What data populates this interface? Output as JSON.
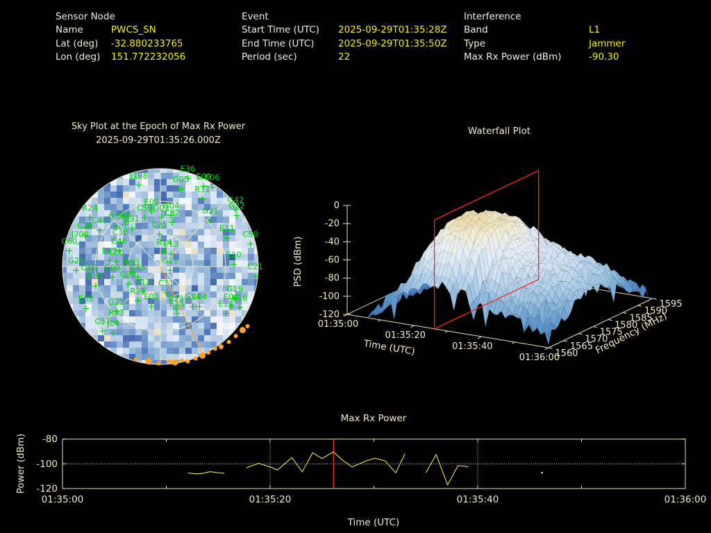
{
  "header": {
    "sensor": {
      "title": "Sensor Node",
      "rows": [
        {
          "label": "Name",
          "value": "PWCS_SN"
        },
        {
          "label": "Lat (deg)",
          "value": "-32.880233765"
        },
        {
          "label": "Lon (deg)",
          "value": "151.772232056"
        }
      ]
    },
    "event": {
      "title": "Event",
      "rows": [
        {
          "label": "Start Time (UTC)",
          "value": "2025-09-29T01:35:28Z"
        },
        {
          "label": "End Time (UTC)",
          "value": "2025-09-29T01:35:50Z"
        },
        {
          "label": "Period (sec)",
          "value": "22"
        }
      ]
    },
    "interference": {
      "title": "Interference",
      "rows": [
        {
          "label": "Band",
          "value": "L1"
        },
        {
          "label": "Type",
          "value": "Jammer"
        },
        {
          "label": "Max Rx Power (dBm)",
          "value": "-90.30"
        }
      ]
    }
  },
  "colors": {
    "background": "#000000",
    "label_white": "#f0efe2",
    "value_yellow": "#f2f216",
    "axis_cream": "#f2eecb",
    "grid_cream": "#e9e5c2",
    "sat_green": "#00d400",
    "track_orange": "#ffa226",
    "marker_red": "#ff2222",
    "series_yellow": "#efe352"
  },
  "chart_data": [
    {
      "type": "polar-heatmap",
      "title": "Sky Plot at the Epoch of Max Rx Power",
      "subtitle": "2025-09-29T01:35:26.000Z",
      "elevation_rings_deg": [
        0,
        30,
        60
      ],
      "spokes_deg_step": 45,
      "label_color": "#00d400",
      "track_color": "#ffa226",
      "palette": [
        "#24427f",
        "#3a5da6",
        "#5b82c0",
        "#86aad2",
        "#aec8e2",
        "#d3e1ef",
        "#eaf0f8",
        "#ffffff"
      ],
      "accent_cream": "#e9e2c6",
      "satellites": [
        {
          "id": "E36",
          "x": 0.28,
          "y": -1.0
        },
        {
          "id": "J198",
          "x": -0.22,
          "y": -0.93
        },
        {
          "id": "G05",
          "x": 0.21,
          "y": -0.89
        },
        {
          "id": "E09",
          "x": 0.44,
          "y": -0.92
        },
        {
          "id": "E06",
          "x": 0.53,
          "y": -0.91
        },
        {
          "id": "R11",
          "x": 0.43,
          "y": -0.79
        },
        {
          "id": "G42",
          "x": 0.77,
          "y": -0.68
        },
        {
          "id": "G22",
          "x": 0.78,
          "y": -0.62
        },
        {
          "id": "G21",
          "x": 0.51,
          "y": -0.57
        },
        {
          "id": "E11",
          "x": 0.68,
          "y": -0.39
        },
        {
          "id": "C50",
          "x": 0.92,
          "y": -0.33
        },
        {
          "id": "E10",
          "x": 0.75,
          "y": -0.12
        },
        {
          "id": "C21",
          "x": 0.97,
          "y": 0.0
        },
        {
          "id": "G19",
          "x": 0.76,
          "y": 0.23
        },
        {
          "id": "E04",
          "x": 0.72,
          "y": 0.31
        },
        {
          "id": "E16",
          "x": 0.81,
          "y": 0.32
        },
        {
          "id": "E14",
          "x": 0.67,
          "y": 0.38
        },
        {
          "id": "G34",
          "x": 0.33,
          "y": 0.31
        },
        {
          "id": "C04",
          "x": 0.4,
          "y": 0.31
        },
        {
          "id": "R23",
          "x": 0.16,
          "y": 0.33
        },
        {
          "id": "E15",
          "x": 0.17,
          "y": 0.38
        },
        {
          "id": "C11",
          "x": 0.06,
          "y": 0.17
        },
        {
          "id": "G12",
          "x": -0.18,
          "y": 0.16
        },
        {
          "id": "R13",
          "x": -0.23,
          "y": 0.25
        },
        {
          "id": "E02",
          "x": -0.09,
          "y": 0.31
        },
        {
          "id": "G25",
          "x": -0.45,
          "y": 0.36
        },
        {
          "id": "R03",
          "x": -0.45,
          "y": 0.47
        },
        {
          "id": "C57",
          "x": -0.59,
          "y": 0.56
        },
        {
          "id": "J04",
          "x": -0.48,
          "y": 0.58
        },
        {
          "id": "E08",
          "x": -0.76,
          "y": 0.33
        },
        {
          "id": "E30",
          "x": -0.66,
          "y": 0.1
        },
        {
          "id": "C10",
          "x": -0.73,
          "y": 0.01
        },
        {
          "id": "G29",
          "x": -0.86,
          "y": -0.06
        },
        {
          "id": "C60",
          "x": -0.93,
          "y": -0.26
        },
        {
          "id": "J200",
          "x": -0.82,
          "y": -0.33
        },
        {
          "id": "C26",
          "x": -0.77,
          "y": -0.42
        },
        {
          "id": "R24",
          "x": -0.72,
          "y": -0.6
        },
        {
          "id": "C40",
          "x": -0.62,
          "y": -0.47
        },
        {
          "id": "G37",
          "x": -0.45,
          "y": -0.51
        },
        {
          "id": "J13",
          "x": -0.36,
          "y": -0.53
        },
        {
          "id": "E31",
          "x": -0.29,
          "y": -0.49
        },
        {
          "id": "E05",
          "x": -0.09,
          "y": -0.66
        },
        {
          "id": "C59",
          "x": -0.16,
          "y": -0.6
        },
        {
          "id": "G01",
          "x": 0.01,
          "y": -0.6
        },
        {
          "id": "G04",
          "x": 0.11,
          "y": -0.62
        },
        {
          "id": "C82",
          "x": 0.12,
          "y": -0.55
        },
        {
          "id": "C25",
          "x": -0.01,
          "y": -0.43
        },
        {
          "id": "C35",
          "x": -0.41,
          "y": -0.35
        },
        {
          "id": "C46",
          "x": -0.42,
          "y": -0.26
        },
        {
          "id": "E03",
          "x": -0.52,
          "y": -0.16
        },
        {
          "id": "C06",
          "x": -0.45,
          "y": -0.15
        },
        {
          "id": "C09",
          "x": -0.49,
          "y": 0.01
        },
        {
          "id": "R33",
          "x": -0.29,
          "y": -0.04
        },
        {
          "id": "E45",
          "x": -0.23,
          "y": 0.01
        },
        {
          "id": "C23",
          "x": -0.33,
          "y": 0.08
        },
        {
          "id": "R14",
          "x": 0.04,
          "y": -0.25
        },
        {
          "id": "E13",
          "x": 0.11,
          "y": -0.23
        },
        {
          "id": "G11",
          "x": 0.1,
          "y": -0.06
        }
      ],
      "horizon_track_dots": [
        [
          -0.25,
          0.95,
          3
        ],
        [
          -0.12,
          0.97,
          4.5
        ],
        [
          -0.02,
          0.99,
          3
        ],
        [
          0.09,
          0.97,
          3
        ],
        [
          0.15,
          0.98,
          4.5
        ],
        [
          0.22,
          0.96,
          3
        ],
        [
          0.28,
          0.97,
          3
        ],
        [
          0.36,
          0.94,
          3
        ],
        [
          0.43,
          0.91,
          4.5
        ],
        [
          0.49,
          0.88,
          3
        ],
        [
          0.56,
          0.84,
          3
        ],
        [
          0.62,
          0.82,
          3.5
        ],
        [
          0.7,
          0.77,
          3
        ],
        [
          0.77,
          0.71,
          3
        ],
        [
          0.84,
          0.65,
          4.5
        ],
        [
          0.89,
          0.61,
          3
        ]
      ],
      "bearing_line_end": [
        0.44,
        0.915
      ]
    },
    {
      "type": "surface",
      "title": "Waterfall Plot",
      "xlabel": "Time (UTC)",
      "ylabel": "Frequency (MHz)",
      "zlabel": "PSD (dBm)",
      "time_ticks": [
        {
          "sec": 0,
          "label": "01:35:00"
        },
        {
          "sec": 20,
          "label": "01:35:20"
        },
        {
          "sec": 40,
          "label": "01:35:40"
        },
        {
          "sec": 60,
          "label": "01:36:00"
        }
      ],
      "time_minor_ticks_sec": [
        10,
        30,
        50
      ],
      "freq_ticks": [
        1560,
        1565,
        1570,
        1575,
        1580,
        1585,
        1590,
        1595
      ],
      "psd_ticks": [
        0,
        -20,
        -40,
        -60,
        -80,
        -100,
        -120
      ],
      "zlim": [
        -120,
        0
      ],
      "freq_range_mhz": [
        1560,
        1595
      ],
      "time_range_sec": [
        0,
        60
      ],
      "epoch_marker_sec": 26,
      "marker_color": "#ff2222",
      "grid_time_step_sec": 5,
      "grid_freq_step_mhz": 5,
      "psd_grid_dbm": [
        [
          -120,
          -120,
          -120,
          -120,
          -120,
          -120,
          -120,
          -120
        ],
        [
          -120,
          -119,
          -118,
          -119,
          -120,
          -120,
          -120,
          -120
        ],
        [
          -104,
          -98,
          -95,
          -97,
          -101,
          -106,
          -112,
          -118
        ],
        [
          -88,
          -70,
          -58,
          -62,
          -72,
          -86,
          -100,
          -112
        ],
        [
          -76,
          -40,
          -25,
          -28,
          -38,
          -60,
          -84,
          -104
        ],
        [
          -70,
          -25,
          -12,
          -15,
          -25,
          -46,
          -74,
          -99
        ],
        [
          -68,
          -22,
          -10,
          -13,
          -22,
          -42,
          -70,
          -97
        ],
        [
          -72,
          -30,
          -14,
          -18,
          -30,
          -50,
          -77,
          -100
        ],
        [
          -80,
          -45,
          -30,
          -34,
          -44,
          -62,
          -84,
          -104
        ],
        [
          -90,
          -60,
          -47,
          -49,
          -54,
          -67,
          -87,
          -107
        ],
        [
          -95,
          -67,
          -54,
          -53,
          -57,
          -69,
          -89,
          -110
        ],
        [
          -101,
          -79,
          -64,
          -61,
          -65,
          -75,
          -94,
          -113
        ],
        [
          -109,
          -94,
          -81,
          -77,
          -81,
          -89,
          -103,
          -117
        ]
      ]
    },
    {
      "type": "line",
      "title": "Max Rx Power",
      "xlabel": "Time (UTC)",
      "ylabel": "Power (dBm)",
      "xlim_sec": [
        0,
        60
      ],
      "ylim": [
        -120,
        -80
      ],
      "x_ticks": [
        {
          "sec": 0,
          "label": "01:35:00"
        },
        {
          "sec": 20,
          "label": "01:35:20"
        },
        {
          "sec": 40,
          "label": "01:35:40"
        },
        {
          "sec": 60,
          "label": "01:36:00"
        }
      ],
      "x_minor_ticks_sec": [
        10,
        30,
        50
      ],
      "y_ticks": [
        -80,
        -100,
        -120
      ],
      "dotted_hline_dbm": -100,
      "dotted_vlines_sec": [
        20,
        40
      ],
      "epoch_marker_sec": 26.1,
      "line_color": "#efe352",
      "marker_color": "#ff2222",
      "segments": [
        [
          [
            12.1,
            -107.3
          ],
          [
            12.9,
            -108.1
          ],
          [
            13.6,
            -107.6
          ],
          [
            14.2,
            -106.3
          ],
          [
            14.9,
            -107.1
          ],
          [
            15.6,
            -107.6
          ]
        ],
        [
          [
            17.7,
            -103.2
          ],
          [
            18.9,
            -99.6
          ],
          [
            20.1,
            -102.8
          ],
          [
            20.7,
            -105.0
          ],
          [
            22.1,
            -94.9
          ],
          [
            23.1,
            -106.5
          ],
          [
            24.1,
            -91.0
          ],
          [
            25.0,
            -95.7
          ],
          [
            26.1,
            -90.3
          ],
          [
            27.0,
            -97.2
          ],
          [
            27.9,
            -102.5
          ],
          [
            29.2,
            -97.8
          ],
          [
            30.1,
            -95.4
          ],
          [
            31.1,
            -97.8
          ],
          [
            32.1,
            -107.2
          ],
          [
            33.0,
            -91.8
          ]
        ],
        [
          [
            35.0,
            -107.1
          ],
          [
            36.0,
            -92.5
          ],
          [
            37.1,
            -117.0
          ],
          [
            38.1,
            -101.5
          ],
          [
            39.1,
            -102.2
          ]
        ]
      ],
      "isolated_points": [
        [
          46.2,
          -107.2
        ]
      ]
    }
  ]
}
